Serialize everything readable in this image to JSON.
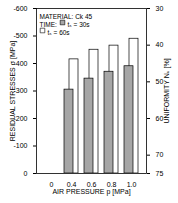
{
  "chart_data": {
    "type": "bar",
    "categories": [
      "0",
      "0.4",
      "0.6",
      "0.8",
      "1.0"
    ],
    "series": [
      {
        "name": "tₛ = 30s",
        "color": "#a6a6a6",
        "values": [
          null,
          -305,
          -345,
          -370,
          -390
        ]
      },
      {
        "name": "tₛ = 60s",
        "color": "#ffffff",
        "values": [
          null,
          -415,
          -450,
          -465,
          -490
        ]
      }
    ],
    "x_label": "AIR PRESSURE p [MPa]",
    "y_label": "RESIDUAL STRESSES σ [MPa]",
    "y2_label": "UNIFORMITY Nᵤ [%]",
    "ylim": [
      0,
      -600
    ],
    "yticks": [
      -600,
      -500,
      -400,
      -300,
      -200,
      -100,
      0
    ],
    "y2lim": [
      75,
      30
    ],
    "y2ticks": [
      30,
      40,
      50,
      60,
      70,
      75
    ],
    "annotations": [
      "MATERIAL: Ck 45"
    ],
    "legend_title": "TIME:",
    "legend": "top-left"
  }
}
